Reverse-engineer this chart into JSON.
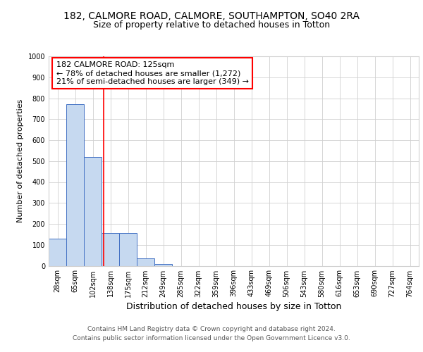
{
  "title1": "182, CALMORE ROAD, CALMORE, SOUTHAMPTON, SO40 2RA",
  "title2": "Size of property relative to detached houses in Totton",
  "xlabel": "Distribution of detached houses by size in Totton",
  "ylabel": "Number of detached properties",
  "categories": [
    "28sqm",
    "65sqm",
    "102sqm",
    "138sqm",
    "175sqm",
    "212sqm",
    "249sqm",
    "285sqm",
    "322sqm",
    "359sqm",
    "396sqm",
    "433sqm",
    "469sqm",
    "506sqm",
    "543sqm",
    "580sqm",
    "616sqm",
    "653sqm",
    "690sqm",
    "727sqm",
    "764sqm"
  ],
  "values": [
    130,
    770,
    520,
    155,
    155,
    35,
    10,
    0,
    0,
    0,
    0,
    0,
    0,
    0,
    0,
    0,
    0,
    0,
    0,
    0,
    0
  ],
  "bar_color": "#c6d9f0",
  "bar_edge_color": "#4472c4",
  "annotation_line1": "182 CALMORE ROAD: 125sqm",
  "annotation_line2": "← 78% of detached houses are smaller (1,272)",
  "annotation_line3": "21% of semi-detached houses are larger (349) →",
  "footer1": "Contains HM Land Registry data © Crown copyright and database right 2024.",
  "footer2": "Contains public sector information licensed under the Open Government Licence v3.0.",
  "ylim": [
    0,
    1000
  ],
  "yticks": [
    0,
    100,
    200,
    300,
    400,
    500,
    600,
    700,
    800,
    900,
    1000
  ],
  "bg_color": "#ffffff",
  "grid_color": "#d0d0d0",
  "title1_fontsize": 10,
  "title2_fontsize": 9,
  "xlabel_fontsize": 9,
  "ylabel_fontsize": 8,
  "tick_fontsize": 7,
  "annotation_fontsize": 8,
  "footer_fontsize": 6.5
}
